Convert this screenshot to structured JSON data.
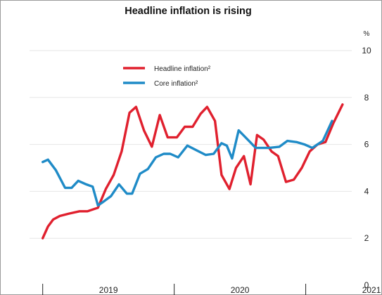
{
  "chart_data": {
    "type": "line",
    "title": "Headline inflation is rising",
    "y_unit": "%",
    "ylim": [
      0,
      10
    ],
    "y_ticks": [
      "0",
      "2",
      "4",
      "6",
      "8",
      "10"
    ],
    "x_tick_labels": [
      "2019",
      "2020",
      "2021"
    ],
    "grid": true,
    "legend_position": "top-left",
    "series": [
      {
        "name": "Headline inflation²",
        "color": "#e0202e",
        "points": [
          [
            2019.0,
            2.0
          ],
          [
            2019.04,
            2.5
          ],
          [
            2019.08,
            2.8
          ],
          [
            2019.13,
            2.95
          ],
          [
            2019.2,
            3.05
          ],
          [
            2019.28,
            3.15
          ],
          [
            2019.34,
            3.15
          ],
          [
            2019.42,
            3.3
          ],
          [
            2019.48,
            4.1
          ],
          [
            2019.54,
            4.7
          ],
          [
            2019.6,
            5.7
          ],
          [
            2019.66,
            7.35
          ],
          [
            2019.71,
            7.6
          ],
          [
            2019.77,
            6.6
          ],
          [
            2019.83,
            5.9
          ],
          [
            2019.89,
            7.25
          ],
          [
            2019.95,
            6.3
          ],
          [
            2020.02,
            6.3
          ],
          [
            2020.08,
            6.75
          ],
          [
            2020.14,
            6.75
          ],
          [
            2020.2,
            7.3
          ],
          [
            2020.25,
            7.6
          ],
          [
            2020.31,
            7.0
          ],
          [
            2020.36,
            4.7
          ],
          [
            2020.42,
            4.1
          ],
          [
            2020.47,
            5.0
          ],
          [
            2020.53,
            5.5
          ],
          [
            2020.58,
            4.3
          ],
          [
            2020.63,
            6.4
          ],
          [
            2020.68,
            6.2
          ],
          [
            2020.74,
            5.7
          ],
          [
            2020.79,
            5.5
          ],
          [
            2020.85,
            4.4
          ],
          [
            2020.91,
            4.5
          ],
          [
            2020.97,
            5.0
          ],
          [
            2021.03,
            5.7
          ],
          [
            2021.09,
            6.0
          ],
          [
            2021.15,
            6.1
          ],
          [
            2021.21,
            6.9
          ],
          [
            2021.28,
            7.7
          ]
        ]
      },
      {
        "name": "Core inflation²",
        "color": "#1f8bc7",
        "points": [
          [
            2019.0,
            5.25
          ],
          [
            2019.04,
            5.35
          ],
          [
            2019.1,
            4.9
          ],
          [
            2019.17,
            4.15
          ],
          [
            2019.22,
            4.15
          ],
          [
            2019.27,
            4.45
          ],
          [
            2019.33,
            4.3
          ],
          [
            2019.38,
            4.2
          ],
          [
            2019.42,
            3.4
          ],
          [
            2019.46,
            3.55
          ],
          [
            2019.52,
            3.8
          ],
          [
            2019.58,
            4.3
          ],
          [
            2019.64,
            3.9
          ],
          [
            2019.68,
            3.9
          ],
          [
            2019.74,
            4.75
          ],
          [
            2019.8,
            4.95
          ],
          [
            2019.86,
            5.45
          ],
          [
            2019.92,
            5.6
          ],
          [
            2019.97,
            5.6
          ],
          [
            2020.03,
            5.45
          ],
          [
            2020.1,
            5.95
          ],
          [
            2020.17,
            5.75
          ],
          [
            2020.24,
            5.55
          ],
          [
            2020.3,
            5.6
          ],
          [
            2020.36,
            6.05
          ],
          [
            2020.4,
            5.95
          ],
          [
            2020.44,
            5.4
          ],
          [
            2020.49,
            6.6
          ],
          [
            2020.56,
            6.2
          ],
          [
            2020.62,
            5.85
          ],
          [
            2020.72,
            5.85
          ],
          [
            2020.8,
            5.9
          ],
          [
            2020.86,
            6.15
          ],
          [
            2020.93,
            6.1
          ],
          [
            2020.99,
            6.0
          ],
          [
            2021.05,
            5.85
          ],
          [
            2021.13,
            6.15
          ],
          [
            2021.2,
            7.0
          ]
        ]
      }
    ]
  }
}
